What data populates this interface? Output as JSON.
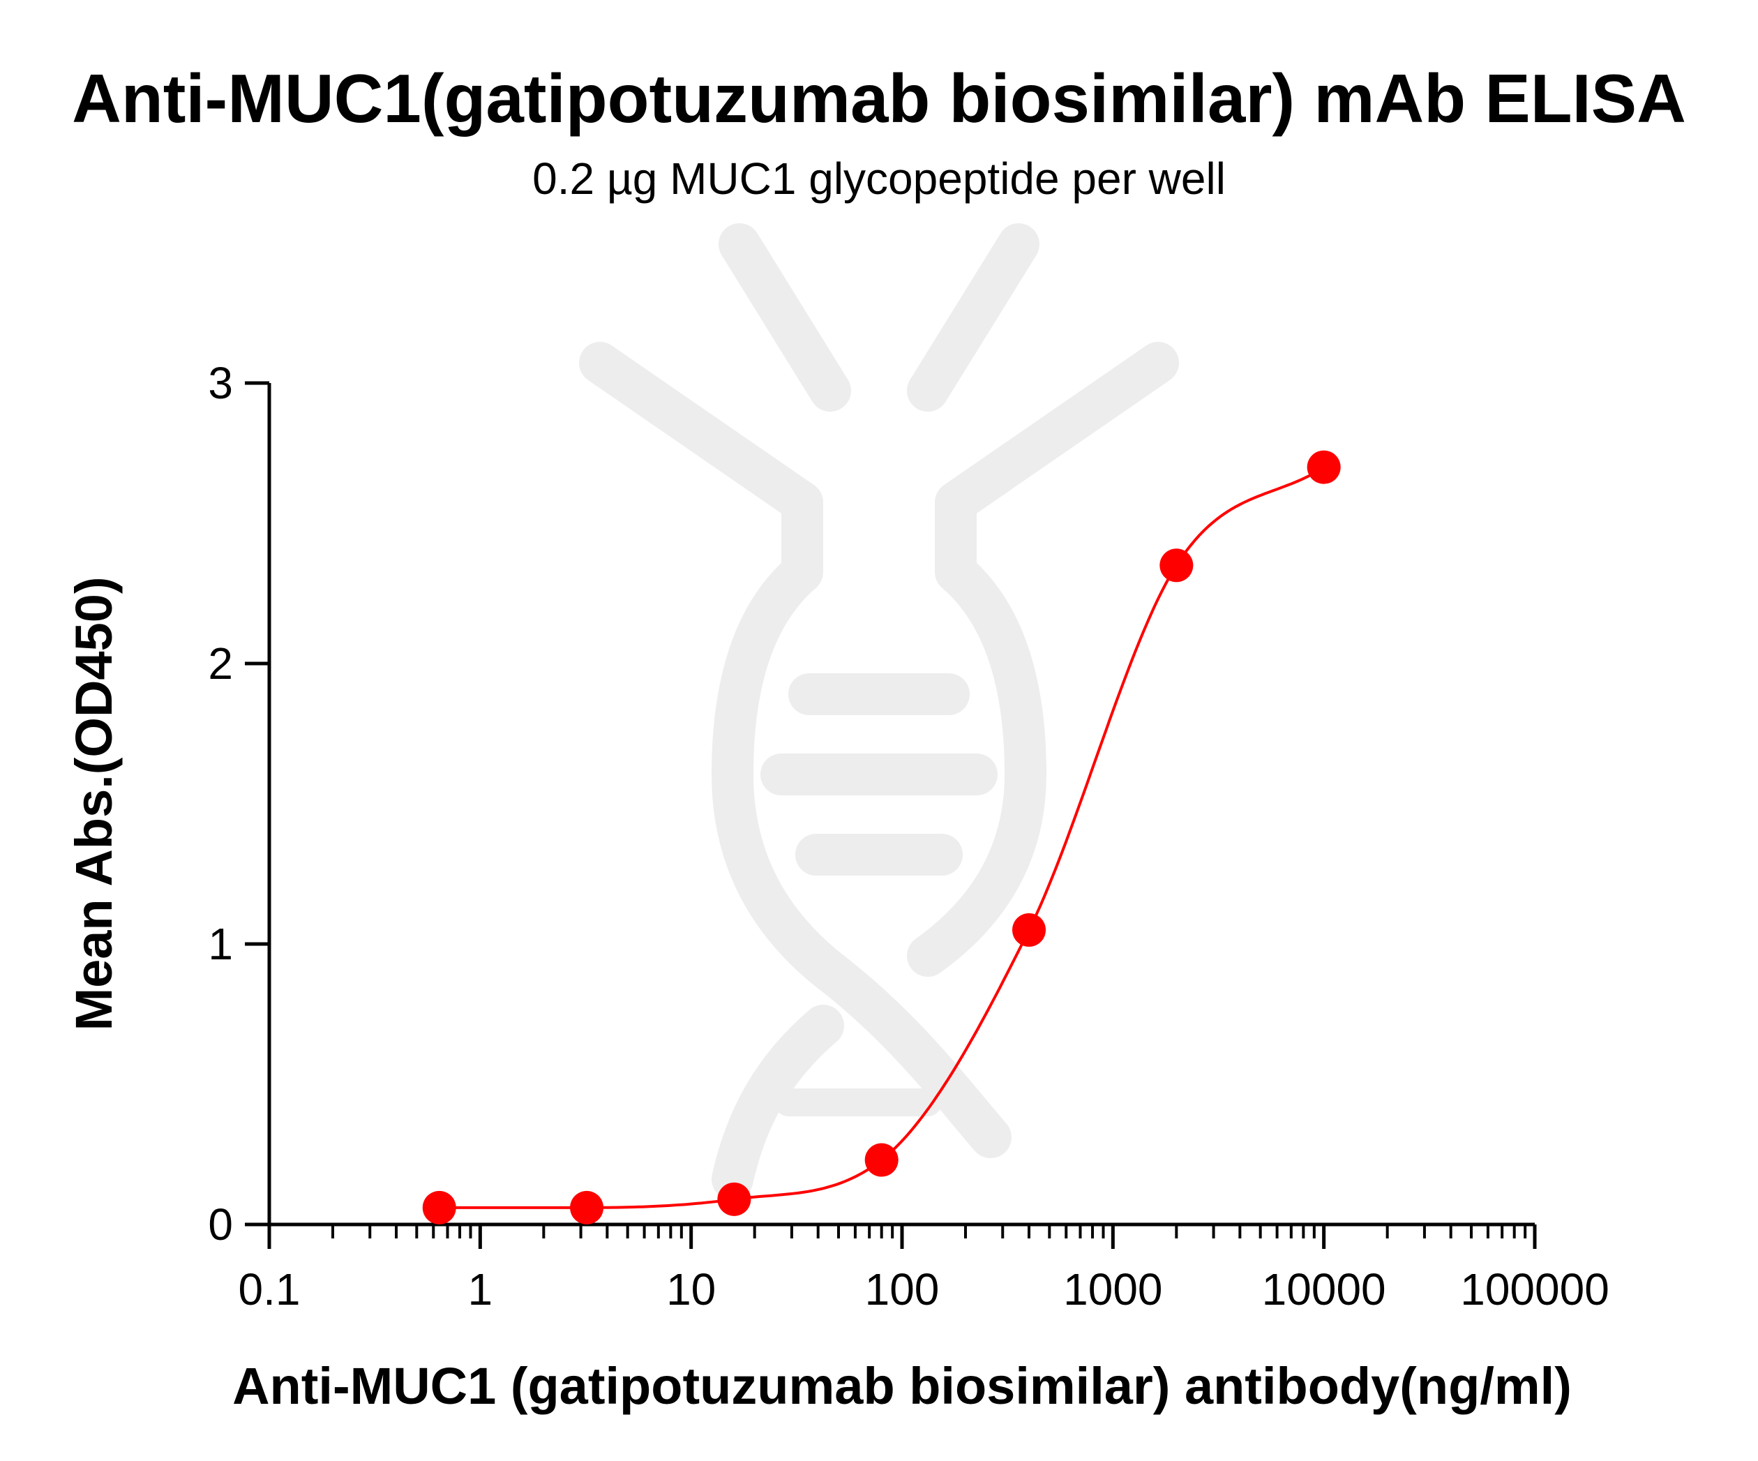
{
  "chart_data": {
    "type": "scatter",
    "title": "Anti-MUC1(gatipotuzumab biosimilar) mAb ELISA",
    "subtitle": "0.2 µg MUC1 glycopeptide per well",
    "xlabel": "Anti-MUC1 (gatipotuzumab biosimilar) antibody(ng/ml)",
    "ylabel": "Mean Abs.(OD450)",
    "x_scale": "log",
    "xlim": [
      0.1,
      100000
    ],
    "ylim": [
      0,
      3
    ],
    "x_ticks": [
      "0.1",
      "1",
      "10",
      "100",
      "1000",
      "10000",
      "100000"
    ],
    "y_ticks": [
      "0",
      "1",
      "2",
      "3"
    ],
    "grid": false,
    "fit_curve": "sigmoidal",
    "color": "#ff0000",
    "series": [
      {
        "x": [
          0.64,
          3.2,
          16,
          80,
          400,
          2000,
          10000
        ],
        "y": [
          0.06,
          0.06,
          0.09,
          0.23,
          1.05,
          2.35,
          2.7
        ]
      }
    ]
  }
}
